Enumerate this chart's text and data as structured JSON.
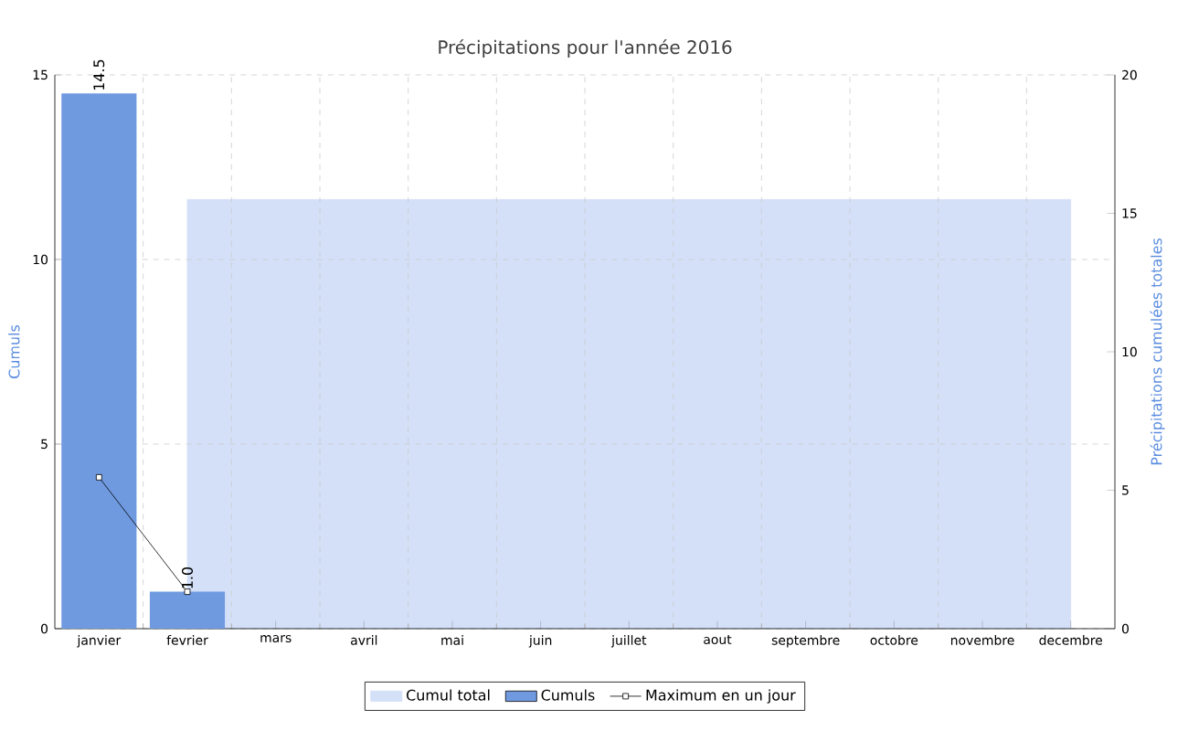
{
  "chart_data": {
    "type": "bar",
    "title": "Précipitations pour l'année 2016",
    "categories": [
      "janvier",
      "fevrier",
      "mars",
      "avril",
      "mai",
      "juin",
      "juillet",
      "aout",
      "septembre",
      "octobre",
      "novembre",
      "decembre"
    ],
    "series": [
      {
        "name": "Cumul total",
        "type": "area",
        "axis": "y2",
        "color": "#d3e0f8",
        "values": [
          null,
          15.5,
          15.5,
          15.5,
          15.5,
          15.5,
          15.5,
          15.5,
          15.5,
          15.5,
          15.5,
          15.5
        ]
      },
      {
        "name": "Cumuls",
        "color": "#6f9ae0",
        "values": [
          14.5,
          1.0,
          0,
          0,
          0,
          0,
          0,
          0,
          0,
          0,
          0,
          0
        ],
        "value_labels": [
          "14.5",
          "1.0",
          null,
          null,
          null,
          null,
          null,
          null,
          null,
          null,
          null,
          null
        ]
      },
      {
        "name": "Maximum en un jour",
        "type": "line",
        "color": "#000000",
        "marker": "square",
        "values": [
          4.1,
          1.0,
          null,
          null,
          null,
          null,
          null,
          null,
          null,
          null,
          null,
          null
        ]
      }
    ],
    "ylabel": "Cumuls",
    "y2label": "Précipitations cumulées totales",
    "ylim": [
      0,
      15
    ],
    "yticks": [
      0,
      5,
      10,
      15
    ],
    "y2lim": [
      0,
      20
    ],
    "y2ticks": [
      0,
      5,
      10,
      15,
      20
    ],
    "grid": true,
    "legend": "bottom"
  }
}
